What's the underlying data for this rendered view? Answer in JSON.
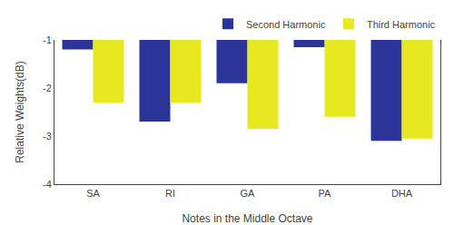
{
  "chart_data": {
    "type": "bar",
    "categories": [
      "SA",
      "RI",
      "GA",
      "PA",
      "DHA"
    ],
    "series": [
      {
        "name": "Second Harmonic",
        "color": "#2b3499",
        "values": [
          -1.2,
          -2.7,
          -1.9,
          -1.15,
          -3.1
        ]
      },
      {
        "name": "Third Harmonic",
        "color": "#e8e820",
        "values": [
          -2.3,
          -2.3,
          -2.85,
          -2.6,
          -3.05
        ]
      }
    ],
    "xlabel": "Notes in the Middle Octave",
    "ylabel": "Relative Weights(dB)",
    "ylim": [
      -4,
      -1
    ],
    "yticks": [
      -4,
      -3,
      -2,
      -1
    ],
    "grid": false,
    "legend": "upper right"
  }
}
